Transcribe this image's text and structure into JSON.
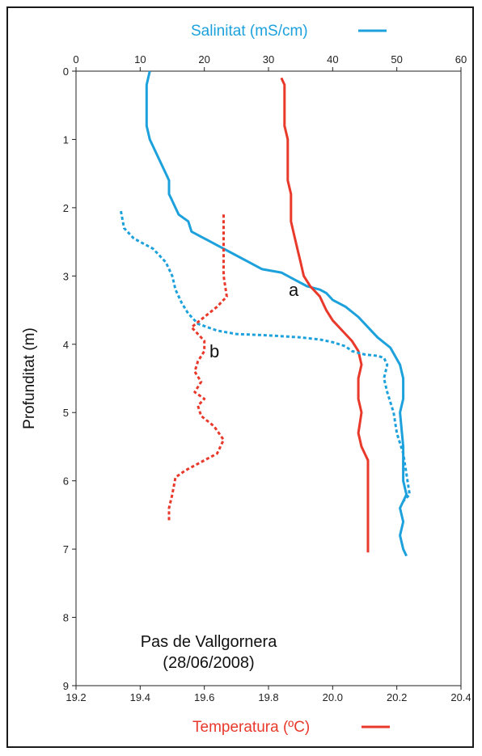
{
  "chart_data": {
    "type": "line",
    "title": "",
    "station_name": "Pas de Vallgornera",
    "date": "(28/06/2008)",
    "ylabel": "Profunditat (m)",
    "ylim": [
      0,
      9
    ],
    "y_inverted": true,
    "y_ticks": [
      "0",
      "1",
      "2",
      "3",
      "4",
      "5",
      "6",
      "7",
      "8",
      "9"
    ],
    "top_axis": {
      "label": "Salinitat (mS/cm)",
      "range": [
        0,
        60
      ],
      "ticks": [
        "0",
        "10",
        "20",
        "30",
        "40",
        "50",
        "60"
      ],
      "color": "#1da1dc"
    },
    "bottom_axis": {
      "label": "Temperatura (ºC)",
      "range": [
        19.2,
        20.4
      ],
      "ticks": [
        "19.2",
        "19.4",
        "19.6",
        "19.8",
        "20.0",
        "20.2",
        "20.4"
      ],
      "color": "#e8392b"
    },
    "annotations": {
      "a": "a",
      "b": "b"
    },
    "series": [
      {
        "name": "Salinitat (mS/cm)",
        "profile": "a",
        "axis": "top",
        "style": "solid",
        "color": "#1da1dc",
        "points": [
          [
            11.5,
            0
          ],
          [
            11,
            0.2
          ],
          [
            11,
            0.8
          ],
          [
            11.5,
            1.0
          ],
          [
            13,
            1.3
          ],
          [
            14,
            1.5
          ],
          [
            14.5,
            1.6
          ],
          [
            14.5,
            1.8
          ],
          [
            15,
            1.9
          ],
          [
            16,
            2.1
          ],
          [
            17.5,
            2.2
          ],
          [
            18,
            2.35
          ],
          [
            20,
            2.45
          ],
          [
            22,
            2.55
          ],
          [
            25,
            2.7
          ],
          [
            27,
            2.8
          ],
          [
            29,
            2.9
          ],
          [
            32,
            2.95
          ],
          [
            34,
            3.05
          ],
          [
            36,
            3.15
          ],
          [
            38,
            3.2
          ],
          [
            39,
            3.25
          ],
          [
            40,
            3.35
          ],
          [
            42,
            3.45
          ],
          [
            44,
            3.6
          ],
          [
            45.5,
            3.75
          ],
          [
            47,
            3.9
          ],
          [
            49,
            4.05
          ],
          [
            50.5,
            4.3
          ],
          [
            51,
            4.5
          ],
          [
            51,
            4.8
          ],
          [
            50.5,
            5.0
          ],
          [
            51,
            5.5
          ],
          [
            51,
            6.0
          ],
          [
            51.5,
            6.2
          ],
          [
            50.5,
            6.4
          ],
          [
            51,
            6.6
          ],
          [
            50.5,
            6.8
          ],
          [
            51,
            7.0
          ],
          [
            51.5,
            7.1
          ]
        ]
      },
      {
        "name": "Temperatura (ºC)",
        "profile": "a",
        "axis": "bottom",
        "style": "solid",
        "color": "#e8392b",
        "points": [
          [
            19.84,
            0.1
          ],
          [
            19.85,
            0.2
          ],
          [
            19.85,
            0.8
          ],
          [
            19.86,
            1.0
          ],
          [
            19.86,
            1.6
          ],
          [
            19.87,
            1.8
          ],
          [
            19.87,
            2.2
          ],
          [
            19.88,
            2.4
          ],
          [
            19.89,
            2.6
          ],
          [
            19.9,
            2.8
          ],
          [
            19.91,
            3.0
          ],
          [
            19.93,
            3.15
          ],
          [
            19.96,
            3.3
          ],
          [
            19.98,
            3.5
          ],
          [
            20.0,
            3.65
          ],
          [
            20.03,
            3.8
          ],
          [
            20.06,
            3.95
          ],
          [
            20.08,
            4.1
          ],
          [
            20.09,
            4.3
          ],
          [
            20.08,
            4.5
          ],
          [
            20.08,
            4.8
          ],
          [
            20.09,
            5.0
          ],
          [
            20.08,
            5.3
          ],
          [
            20.09,
            5.5
          ],
          [
            20.1,
            5.6
          ],
          [
            20.11,
            5.7
          ],
          [
            20.11,
            6.0
          ],
          [
            20.11,
            7.05
          ]
        ]
      },
      {
        "name": "Salinitat (mS/cm)",
        "profile": "b",
        "axis": "top",
        "style": "dashed",
        "color": "#1da1dc",
        "points": [
          [
            7,
            2.05
          ],
          [
            7.5,
            2.3
          ],
          [
            9,
            2.45
          ],
          [
            12,
            2.6
          ],
          [
            14,
            2.8
          ],
          [
            15,
            3.0
          ],
          [
            15.5,
            3.2
          ],
          [
            16.5,
            3.4
          ],
          [
            17.5,
            3.55
          ],
          [
            19,
            3.7
          ],
          [
            22,
            3.8
          ],
          [
            25,
            3.85
          ],
          [
            30,
            3.87
          ],
          [
            35,
            3.9
          ],
          [
            38,
            3.93
          ],
          [
            40,
            3.97
          ],
          [
            42,
            4.03
          ],
          [
            43,
            4.1
          ],
          [
            45,
            4.15
          ],
          [
            47,
            4.17
          ],
          [
            48,
            4.2
          ],
          [
            48.5,
            4.3
          ],
          [
            48,
            4.5
          ],
          [
            48.5,
            4.7
          ],
          [
            49.5,
            5.0
          ],
          [
            50,
            5.3
          ],
          [
            51,
            5.6
          ],
          [
            51.5,
            5.9
          ],
          [
            52,
            6.2
          ],
          [
            51,
            6.3
          ]
        ]
      },
      {
        "name": "Temperatura (ºC)",
        "profile": "b",
        "axis": "bottom",
        "style": "dashed",
        "color": "#e8392b",
        "points": [
          [
            19.66,
            2.1
          ],
          [
            19.66,
            2.6
          ],
          [
            19.66,
            3.0
          ],
          [
            19.67,
            3.3
          ],
          [
            19.64,
            3.45
          ],
          [
            19.6,
            3.6
          ],
          [
            19.56,
            3.75
          ],
          [
            19.58,
            3.85
          ],
          [
            19.6,
            3.95
          ],
          [
            19.6,
            4.1
          ],
          [
            19.58,
            4.25
          ],
          [
            19.57,
            4.4
          ],
          [
            19.59,
            4.55
          ],
          [
            19.57,
            4.7
          ],
          [
            19.6,
            4.8
          ],
          [
            19.58,
            4.9
          ],
          [
            19.59,
            5.05
          ],
          [
            19.63,
            5.2
          ],
          [
            19.66,
            5.4
          ],
          [
            19.64,
            5.6
          ],
          [
            19.58,
            5.75
          ],
          [
            19.54,
            5.85
          ],
          [
            19.51,
            5.95
          ],
          [
            19.5,
            6.2
          ],
          [
            19.49,
            6.4
          ],
          [
            19.49,
            6.6
          ]
        ]
      }
    ]
  }
}
